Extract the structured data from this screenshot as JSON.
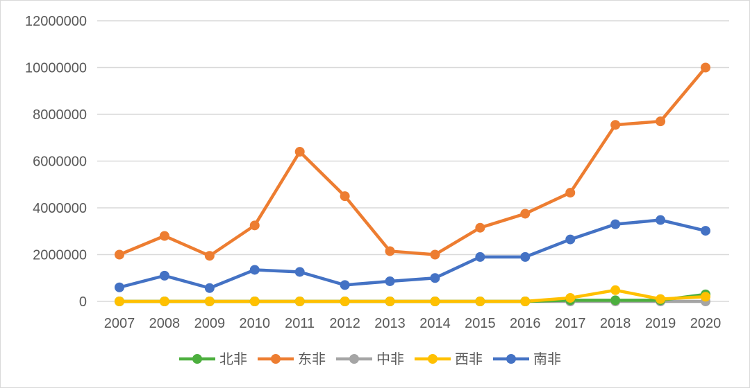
{
  "chart_data": {
    "type": "line",
    "title": "",
    "xlabel": "",
    "ylabel": "",
    "categories": [
      "2007",
      "2008",
      "2009",
      "2010",
      "2011",
      "2012",
      "2013",
      "2014",
      "2015",
      "2016",
      "2017",
      "2018",
      "2019",
      "2020"
    ],
    "ylim": [
      0,
      12000000
    ],
    "yticks": [
      0,
      2000000,
      4000000,
      6000000,
      8000000,
      10000000,
      12000000
    ],
    "grid": true,
    "legend_position": "bottom",
    "series": [
      {
        "name": "北非",
        "color": "#4caf3e",
        "values": [
          0,
          0,
          0,
          0,
          0,
          0,
          0,
          0,
          0,
          0,
          50000,
          50000,
          50000,
          300000
        ]
      },
      {
        "name": "东非",
        "color": "#ed7d31",
        "values": [
          2000000,
          2800000,
          1950000,
          3250000,
          6400000,
          4500000,
          2150000,
          2000000,
          3150000,
          3750000,
          4650000,
          7550000,
          7700000,
          10000000
        ]
      },
      {
        "name": "中非",
        "color": "#a5a5a5",
        "values": [
          0,
          0,
          0,
          0,
          0,
          0,
          0,
          0,
          0,
          0,
          0,
          0,
          0,
          0
        ]
      },
      {
        "name": "西非",
        "color": "#ffc000",
        "values": [
          0,
          0,
          0,
          0,
          0,
          0,
          0,
          0,
          0,
          0,
          150000,
          480000,
          100000,
          200000
        ]
      },
      {
        "name": "南非",
        "color": "#4472c4",
        "values": [
          600000,
          1100000,
          570000,
          1350000,
          1260000,
          700000,
          860000,
          1000000,
          1900000,
          1900000,
          2650000,
          3300000,
          3480000,
          3020000
        ]
      }
    ]
  }
}
